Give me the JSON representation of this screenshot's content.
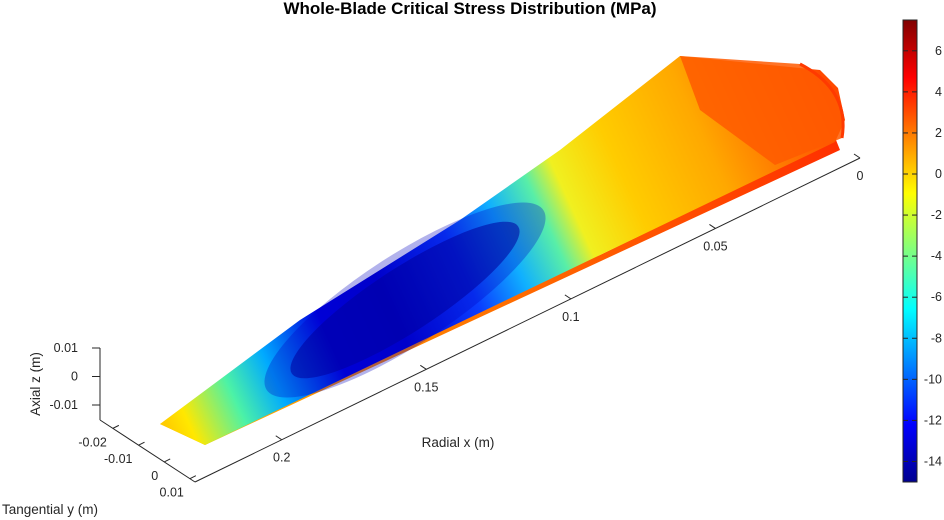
{
  "chart_data": {
    "type": "heatmap",
    "title": "Whole-Blade Critical Stress Distribution (MPa)",
    "xlabel": "Radial x (m)",
    "ylabel": "Tangential y (m)",
    "zlabel": "Axial z (m)",
    "x_ticks": [
      "0",
      "0.05",
      "0.1",
      "0.15",
      "0.2"
    ],
    "y_ticks": [
      "-0.02",
      "-0.01",
      "0",
      "0.01"
    ],
    "z_ticks": [
      "0.01",
      "0",
      "-0.01"
    ],
    "xlim": [
      0,
      0.23
    ],
    "ylim": [
      -0.025,
      0.012
    ],
    "zlim": [
      -0.012,
      0.012
    ],
    "colorbar": {
      "colormap": "jet",
      "range": [
        -15,
        7.5
      ],
      "ticks": [
        "6",
        "4",
        "2",
        "0",
        "-2",
        "-4",
        "-6",
        "-8",
        "-10",
        "-12",
        "-14"
      ]
    },
    "stress_field": {
      "description_points": [
        {
          "x": 0.0,
          "stress": 5
        },
        {
          "x": 0.03,
          "stress": 3.5
        },
        {
          "x": 0.06,
          "stress": 1
        },
        {
          "x": 0.09,
          "stress": -3
        },
        {
          "x": 0.12,
          "stress": -12
        },
        {
          "x": 0.15,
          "stress": -14.5
        },
        {
          "x": 0.18,
          "stress": -9
        },
        {
          "x": 0.205,
          "stress": -2
        },
        {
          "x": 0.22,
          "stress": 0.5
        }
      ],
      "max": 7.5,
      "min": -14.8
    },
    "colors": {
      "text": "#262626",
      "background": "#ffffff"
    }
  }
}
